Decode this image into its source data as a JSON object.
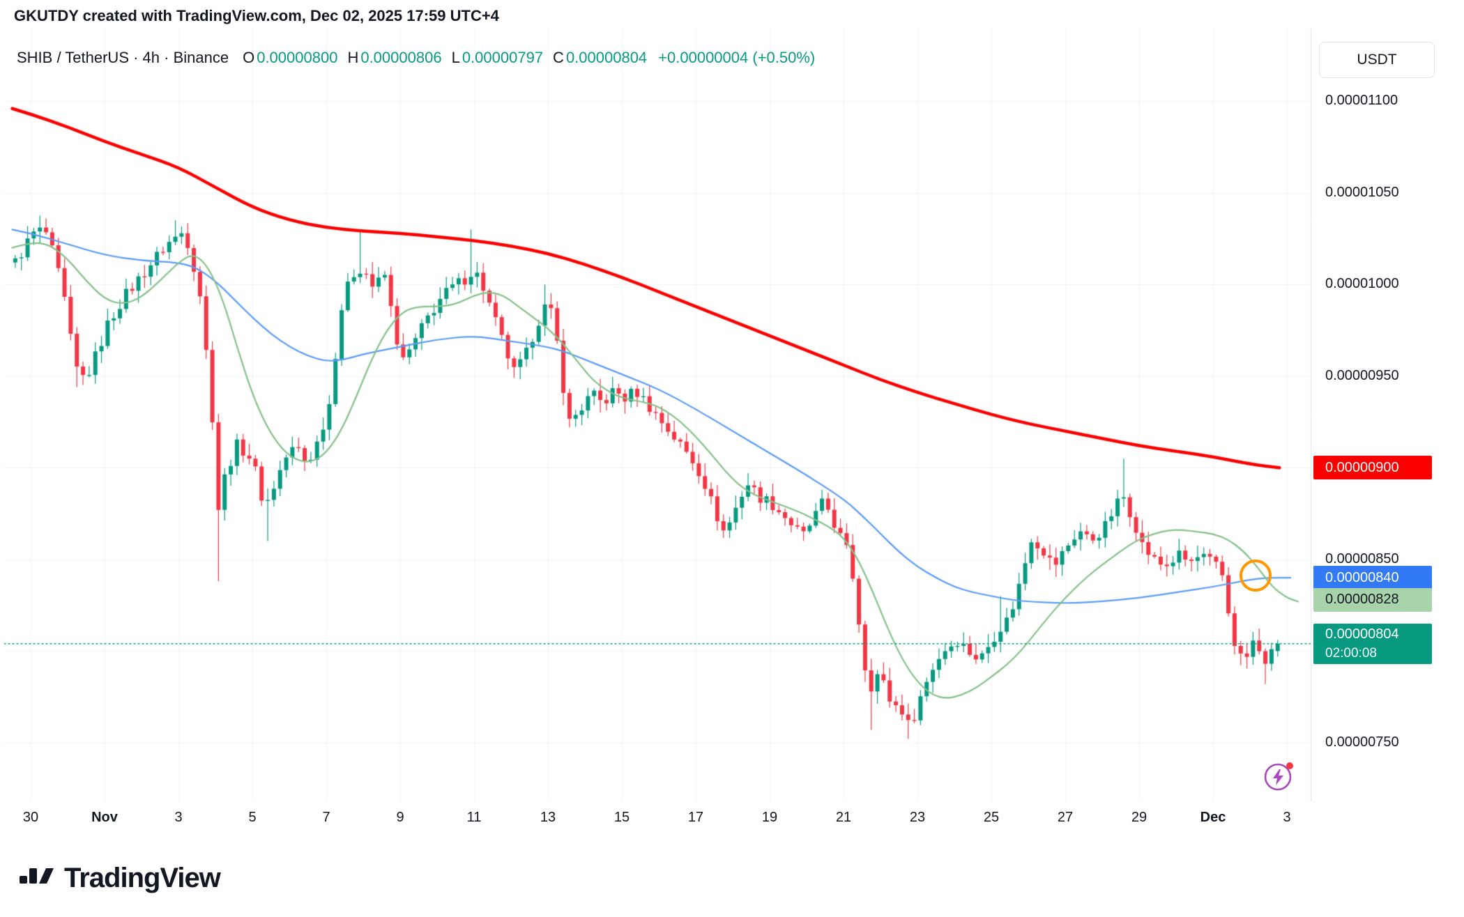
{
  "attribution": "GKUTDY created with TradingView.com, Dec 02, 2025 17:59 UTC+4",
  "header": {
    "symbol": "SHIB / TetherUS · 4h · Binance",
    "o_label": "O",
    "o": "0.00000800",
    "h_label": "H",
    "h": "0.00000806",
    "l_label": "L",
    "l": "0.00000797",
    "c_label": "C",
    "c": "0.00000804",
    "change": "+0.00000004 (+0.50%)",
    "currency_button": "USDT"
  },
  "colors": {
    "up": "#089981",
    "down": "#f23645",
    "ma_long": "#fa0000",
    "ma_mid": "#5b9cf6",
    "ma_short": "#84c288",
    "current_line": "#089981",
    "grid": "#f0f3fa",
    "border": "#e0e3eb",
    "axis_text": "#131722",
    "annotation_orange": "#ff9800",
    "lightning_purple": "#ab47bc"
  },
  "price_axis": {
    "red": {
      "text": "0.00000900",
      "price": 900
    },
    "blue": {
      "text": "0.00000840",
      "price": 840
    },
    "green": {
      "text": "0.00000828",
      "price": 828
    },
    "current": {
      "text": "0.00000804",
      "countdown": "02:00:08",
      "price": 804
    }
  },
  "annotations": {
    "orange_circle": {
      "t": 33.15,
      "price": 841,
      "radius": 23
    }
  },
  "footer": {
    "logo_text": "TradingView"
  },
  "chart_data": {
    "type": "candlestick",
    "title": "SHIB / TetherUS · 4h · Binance",
    "price_unit": "USDT x 1e-8",
    "interval": "4h",
    "candles_per_day": 6,
    "t_start": -0.5,
    "t_end": 33.667,
    "current_price": 804,
    "last_candle": {
      "open": 800,
      "high": 806,
      "low": 797,
      "close": 804,
      "change": "+0.00000004",
      "change_pct": "+0.50%"
    },
    "x_axis": {
      "unit": "days since Oct 30",
      "labels": [
        {
          "label": "30",
          "t": 0
        },
        {
          "label": "Nov",
          "t": 2,
          "bold": true
        },
        {
          "label": "3",
          "t": 4
        },
        {
          "label": "5",
          "t": 6
        },
        {
          "label": "7",
          "t": 8
        },
        {
          "label": "9",
          "t": 10
        },
        {
          "label": "11",
          "t": 12
        },
        {
          "label": "13",
          "t": 14
        },
        {
          "label": "15",
          "t": 16
        },
        {
          "label": "17",
          "t": 18
        },
        {
          "label": "19",
          "t": 20
        },
        {
          "label": "21",
          "t": 22
        },
        {
          "label": "23",
          "t": 24
        },
        {
          "label": "25",
          "t": 26
        },
        {
          "label": "27",
          "t": 28
        },
        {
          "label": "29",
          "t": 30
        },
        {
          "label": "Dec",
          "t": 32,
          "bold": true
        },
        {
          "label": "3",
          "t": 34
        }
      ]
    },
    "y_axis": {
      "visible_range": [
        718,
        1140
      ],
      "ticks": [
        750,
        800,
        850,
        900,
        950,
        1000,
        1050,
        1100
      ],
      "tick_labels": [
        {
          "price": 1100,
          "label": "0.00001100"
        },
        {
          "price": 1050,
          "label": "0.00001050"
        },
        {
          "price": 1000,
          "label": "0.00001000"
        },
        {
          "price": 950,
          "label": "0.00000950"
        },
        {
          "price": 850,
          "label": "0.00000850"
        },
        {
          "price": 750,
          "label": "0.00000750"
        }
      ]
    },
    "close_path": [
      [
        -0.5,
        1012
      ],
      [
        -0.2,
        1022
      ],
      [
        0,
        1028
      ],
      [
        0.3,
        1030
      ],
      [
        0.6,
        1012
      ],
      [
        0.9,
        985
      ],
      [
        1.1,
        955
      ],
      [
        1.4,
        948
      ],
      [
        1.7,
        962
      ],
      [
        2,
        978
      ],
      [
        2.4,
        992
      ],
      [
        2.8,
        1002
      ],
      [
        3.2,
        1012
      ],
      [
        3.6,
        1022
      ],
      [
        4,
        1028
      ],
      [
        4.2,
        1022
      ],
      [
        4.5,
        995
      ],
      [
        4.8,
        938
      ],
      [
        5,
        878
      ],
      [
        5.2,
        898
      ],
      [
        5.5,
        912
      ],
      [
        5.8,
        908
      ],
      [
        6,
        898
      ],
      [
        6.25,
        878
      ],
      [
        6.5,
        890
      ],
      [
        6.8,
        905
      ],
      [
        7.1,
        912
      ],
      [
        7.4,
        902
      ],
      [
        7.7,
        915
      ],
      [
        8,
        935
      ],
      [
        8.3,
        985
      ],
      [
        8.6,
        1005
      ],
      [
        8.9,
        1010
      ],
      [
        9.2,
        998
      ],
      [
        9.5,
        1005
      ],
      [
        9.8,
        972
      ],
      [
        10,
        958
      ],
      [
        10.3,
        968
      ],
      [
        10.6,
        980
      ],
      [
        11,
        992
      ],
      [
        11.3,
        998
      ],
      [
        11.6,
        1002
      ],
      [
        11.9,
        1008
      ],
      [
        12.1,
        1002
      ],
      [
        12.4,
        985
      ],
      [
        12.7,
        968
      ],
      [
        13,
        952
      ],
      [
        13.3,
        960
      ],
      [
        13.6,
        978
      ],
      [
        13.9,
        990
      ],
      [
        14.1,
        978
      ],
      [
        14.3,
        948
      ],
      [
        14.5,
        925
      ],
      [
        14.8,
        932
      ],
      [
        15.1,
        940
      ],
      [
        15.4,
        935
      ],
      [
        15.7,
        942
      ],
      [
        16,
        938
      ],
      [
        16.3,
        942
      ],
      [
        16.6,
        935
      ],
      [
        17,
        925
      ],
      [
        17.4,
        915
      ],
      [
        17.8,
        905
      ],
      [
        18.1,
        895
      ],
      [
        18.4,
        878
      ],
      [
        18.7,
        864
      ],
      [
        19,
        878
      ],
      [
        19.3,
        892
      ],
      [
        19.6,
        885
      ],
      [
        20,
        880
      ],
      [
        20.4,
        872
      ],
      [
        20.8,
        862
      ],
      [
        21.1,
        872
      ],
      [
        21.4,
        882
      ],
      [
        21.7,
        868
      ],
      [
        22,
        855
      ],
      [
        22.2,
        838
      ],
      [
        22.4,
        805
      ],
      [
        22.6,
        778
      ],
      [
        22.8,
        788
      ],
      [
        23,
        782
      ],
      [
        23.2,
        772
      ],
      [
        23.5,
        768
      ],
      [
        23.7,
        758
      ],
      [
        24,
        775
      ],
      [
        24.3,
        790
      ],
      [
        24.6,
        800
      ],
      [
        25,
        806
      ],
      [
        25.3,
        800
      ],
      [
        25.6,
        795
      ],
      [
        25.9,
        805
      ],
      [
        26.1,
        812
      ],
      [
        26.4,
        818
      ],
      [
        26.7,
        838
      ],
      [
        27,
        862
      ],
      [
        27.3,
        856
      ],
      [
        27.6,
        846
      ],
      [
        28,
        858
      ],
      [
        28.3,
        866
      ],
      [
        28.6,
        860
      ],
      [
        29,
        868
      ],
      [
        29.3,
        880
      ],
      [
        29.5,
        884
      ],
      [
        29.8,
        870
      ],
      [
        30,
        858
      ],
      [
        30.3,
        850
      ],
      [
        30.6,
        846
      ],
      [
        31,
        852
      ],
      [
        31.3,
        848
      ],
      [
        31.6,
        852
      ],
      [
        32,
        846
      ],
      [
        32.2,
        840
      ],
      [
        32.4,
        812
      ],
      [
        32.6,
        798
      ],
      [
        32.8,
        795
      ],
      [
        33,
        805
      ],
      [
        33.2,
        797
      ],
      [
        33.4,
        794
      ],
      [
        33.55,
        800
      ],
      [
        33.667,
        804
      ]
    ],
    "wick_lows": [
      [
        1.2,
        944
      ],
      [
        5,
        838
      ],
      [
        6.25,
        860
      ],
      [
        22.7,
        757
      ],
      [
        23.7,
        752
      ],
      [
        33.3,
        782
      ]
    ],
    "wick_highs": [
      [
        0.3,
        1036
      ],
      [
        3.9,
        1035
      ],
      [
        8.9,
        1030
      ],
      [
        11.9,
        1030
      ],
      [
        13.9,
        1000
      ],
      [
        26.1,
        830
      ],
      [
        29.45,
        905
      ]
    ],
    "overlays": [
      {
        "name": "ma-long-red",
        "color": "#fa0000",
        "width": 4.5,
        "path": [
          [
            -0.5,
            1096
          ],
          [
            0,
            1093
          ],
          [
            1,
            1086
          ],
          [
            2,
            1078
          ],
          [
            3,
            1071
          ],
          [
            4,
            1064
          ],
          [
            5,
            1053
          ],
          [
            6,
            1042
          ],
          [
            7,
            1035
          ],
          [
            8,
            1031
          ],
          [
            9,
            1029
          ],
          [
            10,
            1028
          ],
          [
            11,
            1026
          ],
          [
            12,
            1024
          ],
          [
            13,
            1021
          ],
          [
            14,
            1017
          ],
          [
            15,
            1011
          ],
          [
            16,
            1004
          ],
          [
            17,
            996
          ],
          [
            18,
            988
          ],
          [
            19,
            980
          ],
          [
            20,
            972
          ],
          [
            21,
            964
          ],
          [
            22,
            956
          ],
          [
            23,
            948
          ],
          [
            24,
            941
          ],
          [
            25,
            935
          ],
          [
            26,
            929
          ],
          [
            27,
            924
          ],
          [
            28,
            920
          ],
          [
            29,
            916
          ],
          [
            30,
            912
          ],
          [
            31,
            909
          ],
          [
            32,
            906
          ],
          [
            33,
            902
          ],
          [
            33.8,
            900
          ]
        ]
      },
      {
        "name": "ma-mid-blue",
        "color": "#5b9cf6",
        "width": 2.2,
        "path": [
          [
            -0.5,
            1030
          ],
          [
            0,
            1028
          ],
          [
            1,
            1022
          ],
          [
            2,
            1016
          ],
          [
            3,
            1013
          ],
          [
            4,
            1012
          ],
          [
            4.5,
            1009
          ],
          [
            5,
            1002
          ],
          [
            5.5,
            992
          ],
          [
            6,
            982
          ],
          [
            6.5,
            973
          ],
          [
            7,
            966
          ],
          [
            7.5,
            961
          ],
          [
            8,
            958
          ],
          [
            8.5,
            959
          ],
          [
            9,
            962
          ],
          [
            10,
            966
          ],
          [
            11,
            970
          ],
          [
            12,
            972
          ],
          [
            13,
            969
          ],
          [
            14,
            966
          ],
          [
            14.5,
            963
          ],
          [
            15,
            959
          ],
          [
            16,
            951
          ],
          [
            17,
            943
          ],
          [
            18,
            932
          ],
          [
            19,
            920
          ],
          [
            20,
            908
          ],
          [
            21,
            896
          ],
          [
            22,
            883
          ],
          [
            22.5,
            874
          ],
          [
            23,
            864
          ],
          [
            23.5,
            854
          ],
          [
            24,
            846
          ],
          [
            24.5,
            840
          ],
          [
            25,
            835
          ],
          [
            25.5,
            832
          ],
          [
            26,
            830
          ],
          [
            26.5,
            828
          ],
          [
            27,
            827
          ],
          [
            28,
            826
          ],
          [
            29,
            827
          ],
          [
            30,
            829
          ],
          [
            31,
            832
          ],
          [
            32,
            835
          ],
          [
            33,
            839
          ],
          [
            33.5,
            840
          ],
          [
            34.1,
            840
          ]
        ]
      },
      {
        "name": "ma-short-green",
        "color": "#84c288",
        "width": 2.2,
        "path": [
          [
            -0.5,
            1020
          ],
          [
            0,
            1023
          ],
          [
            0.5,
            1022
          ],
          [
            1,
            1014
          ],
          [
            1.5,
            1002
          ],
          [
            2,
            992
          ],
          [
            2.5,
            989
          ],
          [
            3,
            993
          ],
          [
            3.5,
            1002
          ],
          [
            4,
            1012
          ],
          [
            4.4,
            1017
          ],
          [
            4.8,
            1010
          ],
          [
            5.2,
            992
          ],
          [
            5.6,
            965
          ],
          [
            6,
            940
          ],
          [
            6.4,
            922
          ],
          [
            6.8,
            910
          ],
          [
            7.2,
            904
          ],
          [
            7.6,
            903
          ],
          [
            8,
            908
          ],
          [
            8.4,
            920
          ],
          [
            8.8,
            938
          ],
          [
            9.2,
            958
          ],
          [
            9.6,
            974
          ],
          [
            10,
            984
          ],
          [
            10.4,
            988
          ],
          [
            11.2,
            988
          ],
          [
            11.6,
            990
          ],
          [
            12,
            994
          ],
          [
            12.4,
            996
          ],
          [
            12.8,
            994
          ],
          [
            13.2,
            988
          ],
          [
            13.6,
            982
          ],
          [
            14,
            976
          ],
          [
            14.4,
            968
          ],
          [
            14.8,
            958
          ],
          [
            15.2,
            948
          ],
          [
            15.6,
            942
          ],
          [
            16,
            938
          ],
          [
            16.8,
            935
          ],
          [
            17.2,
            931
          ],
          [
            17.6,
            925
          ],
          [
            18,
            917
          ],
          [
            18.4,
            908
          ],
          [
            18.8,
            898
          ],
          [
            19.2,
            890
          ],
          [
            19.6,
            885
          ],
          [
            20,
            882
          ],
          [
            20.8,
            876
          ],
          [
            21.2,
            872
          ],
          [
            21.6,
            868
          ],
          [
            22,
            862
          ],
          [
            22.4,
            850
          ],
          [
            22.8,
            832
          ],
          [
            23.2,
            812
          ],
          [
            23.6,
            795
          ],
          [
            24,
            783
          ],
          [
            24.4,
            776
          ],
          [
            24.8,
            774
          ],
          [
            25.2,
            776
          ],
          [
            25.6,
            780
          ],
          [
            26,
            786
          ],
          [
            26.4,
            792
          ],
          [
            26.8,
            800
          ],
          [
            27.2,
            810
          ],
          [
            27.6,
            820
          ],
          [
            28,
            829
          ],
          [
            28.4,
            837
          ],
          [
            28.8,
            844
          ],
          [
            29.2,
            850
          ],
          [
            29.6,
            856
          ],
          [
            30,
            861
          ],
          [
            30.4,
            864
          ],
          [
            30.8,
            866
          ],
          [
            31.2,
            866
          ],
          [
            31.6,
            865
          ],
          [
            32,
            864
          ],
          [
            32.4,
            861
          ],
          [
            32.8,
            855
          ],
          [
            33.2,
            846
          ],
          [
            33.6,
            835
          ],
          [
            34,
            829
          ],
          [
            34.3,
            827
          ]
        ]
      }
    ]
  }
}
